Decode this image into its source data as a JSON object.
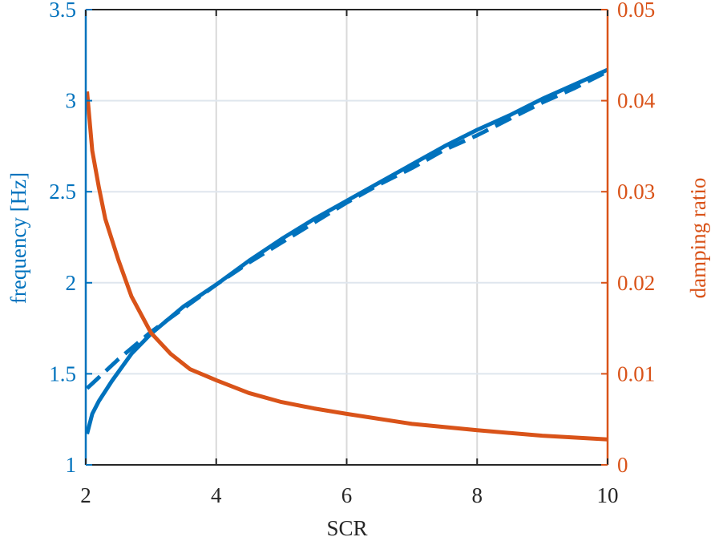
{
  "colors": {
    "left_axis": "#0072BD",
    "right_axis": "#D95319",
    "box": "#262626",
    "grid": "#DFE6EE",
    "grid_vertical": "#D9D9D9",
    "background": "#ffffff"
  },
  "chart_data": {
    "type": "line",
    "xlabel": "SCR",
    "ylabel_left": "frequency [Hz]",
    "ylabel_right": "damping ratio",
    "xlim": [
      2,
      10
    ],
    "ylim_left": [
      1,
      3.5
    ],
    "ylim_right": [
      0,
      0.05
    ],
    "xticks": [
      "2",
      "4",
      "6",
      "8",
      "10"
    ],
    "yticks_left": [
      "1",
      "1.5",
      "2",
      "2.5",
      "3",
      "3.5"
    ],
    "yticks_right": [
      "0",
      "0.01",
      "0.02",
      "0.03",
      "0.04",
      "0.05"
    ],
    "grid": true,
    "series": [
      {
        "axis": "left",
        "style": "solid",
        "color": "#0072BD",
        "x": [
          2.02,
          2.1,
          2.2,
          2.4,
          2.7,
          3,
          3.5,
          4,
          4.5,
          5,
          5.5,
          6,
          6.5,
          7,
          7.5,
          8,
          8.5,
          9,
          9.5,
          10
        ],
        "y": [
          1.17,
          1.28,
          1.35,
          1.46,
          1.61,
          1.72,
          1.87,
          1.99,
          2.12,
          2.24,
          2.35,
          2.45,
          2.55,
          2.65,
          2.75,
          2.84,
          2.92,
          3.01,
          3.09,
          3.17
        ]
      },
      {
        "axis": "left",
        "style": "dashed",
        "color": "#0072BD",
        "x": [
          2.02,
          2.2,
          2.5,
          3,
          3.5,
          4,
          4.5,
          5,
          5.5,
          6,
          6.5,
          7,
          7.5,
          8,
          8.5,
          9,
          9.5,
          10
        ],
        "y": [
          1.42,
          1.48,
          1.58,
          1.73,
          1.86,
          1.99,
          2.11,
          2.22,
          2.33,
          2.44,
          2.54,
          2.63,
          2.73,
          2.81,
          2.9,
          2.99,
          3.07,
          3.16
        ]
      },
      {
        "axis": "right",
        "style": "solid",
        "color": "#D95319",
        "x": [
          2.02,
          2.1,
          2.2,
          2.3,
          2.5,
          2.7,
          3,
          3.3,
          3.6,
          4,
          4.5,
          5,
          5.5,
          6,
          7,
          8,
          9,
          10
        ],
        "y": [
          0.041,
          0.0345,
          0.0305,
          0.027,
          0.0225,
          0.0185,
          0.0145,
          0.0122,
          0.0105,
          0.0093,
          0.0079,
          0.0069,
          0.0062,
          0.0056,
          0.0045,
          0.0038,
          0.0032,
          0.0028
        ]
      }
    ]
  }
}
